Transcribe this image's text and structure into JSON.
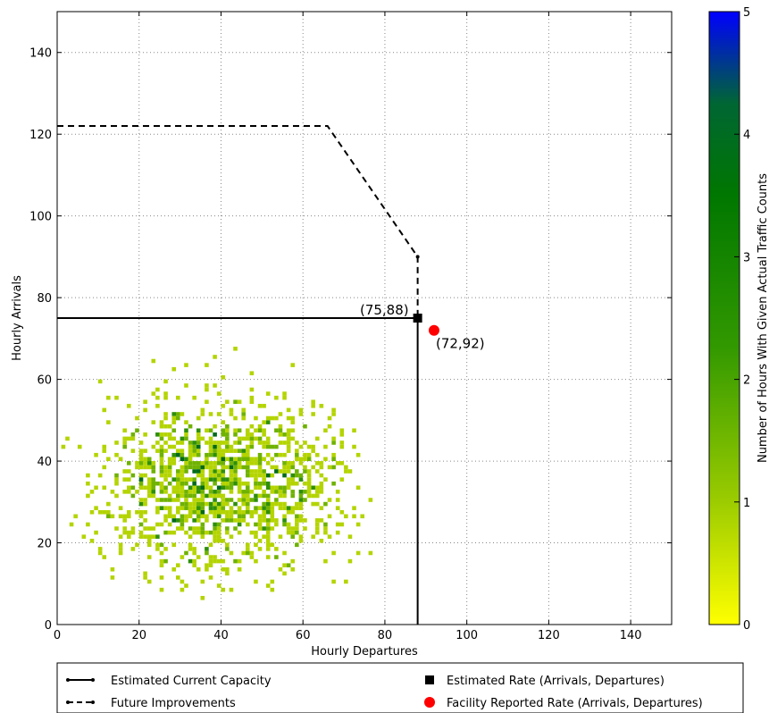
{
  "chart_data": {
    "type": "heatmap",
    "xlabel": "Hourly Departures",
    "ylabel": "Hourly Arrivals",
    "xlim": [
      0,
      150
    ],
    "ylim": [
      0,
      150
    ],
    "x_ticks": [
      0,
      20,
      40,
      60,
      80,
      100,
      120,
      140
    ],
    "y_ticks": [
      0,
      20,
      40,
      60,
      80,
      100,
      120,
      140
    ],
    "grid": true,
    "colorbar": {
      "label": "Number of Hours With Given Actual Traffic Counts",
      "range": [
        0,
        5
      ],
      "ticks": [
        0,
        1,
        2,
        3,
        4,
        5
      ],
      "colors": [
        "#ffff00",
        "#9ccc00",
        "#339900",
        "#007700",
        "#006633",
        "#0000ff"
      ]
    },
    "capacity_line": {
      "name": "Estimated Current Capacity",
      "points": [
        [
          0,
          75
        ],
        [
          88,
          75
        ],
        [
          88,
          0
        ]
      ]
    },
    "future_line": {
      "name": "Future Improvements",
      "points": [
        [
          0,
          122
        ],
        [
          66,
          122
        ],
        [
          88,
          90
        ],
        [
          88,
          75
        ]
      ]
    },
    "estimated_rate": {
      "name": "Estimated Rate (Arrivals, Departures)",
      "x": 88,
      "y": 75,
      "label": "(75,88)"
    },
    "reported_rate": {
      "name": "Facility Reported Rate (Arrivals, Departures)",
      "x": 92,
      "y": 72,
      "label": "(72,92)"
    },
    "cluster": {
      "description_units": "hourly counts",
      "x_range": [
        0,
        76
      ],
      "y_range": [
        1,
        70
      ],
      "center": [
        33,
        34
      ],
      "secondary_center": [
        50,
        35
      ],
      "max_count": 4
    }
  }
}
